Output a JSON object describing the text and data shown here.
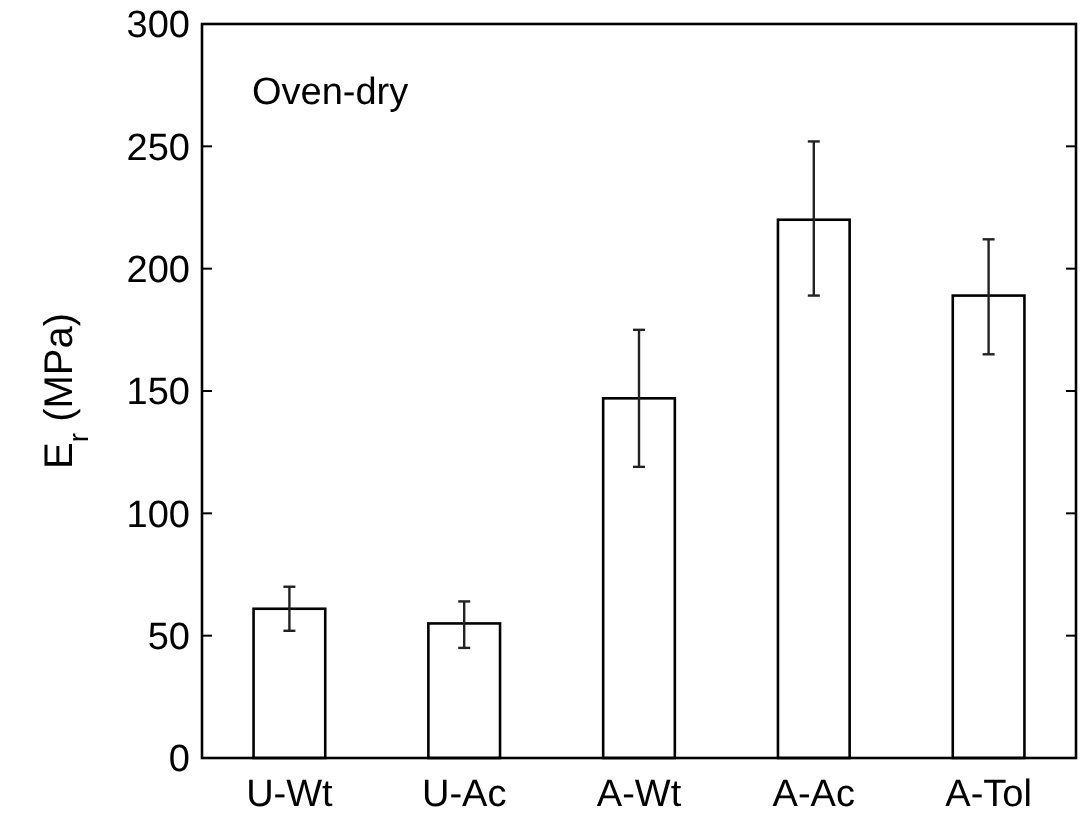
{
  "chart_data": {
    "type": "bar",
    "ylabel": "E$_{r}$ (MPa)",
    "annotations": [
      "Oven-dry"
    ],
    "categories": [
      "U-Wt",
      "U-Ac",
      "A-Wt",
      "A-Ac",
      "A-Tol"
    ],
    "values": [
      61,
      55,
      147,
      220,
      189
    ],
    "errors": [
      [
        52,
        70
      ],
      [
        45,
        64
      ],
      [
        119,
        175
      ],
      [
        189,
        252
      ],
      [
        165,
        212
      ]
    ],
    "color": "#ffffff",
    "ylim": [
      0,
      300
    ],
    "yticks": [
      0,
      50,
      100,
      150,
      200,
      250,
      300
    ],
    "grid": false
  }
}
